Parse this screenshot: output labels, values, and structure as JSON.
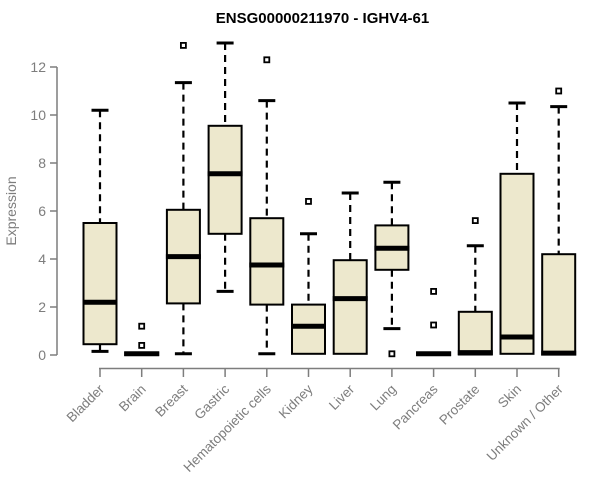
{
  "chart_data": {
    "type": "boxplot",
    "title": "ENSG00000211970 - IGHV4-61",
    "ylabel": "Expression",
    "xlabel": "",
    "yticks": [
      0,
      2,
      4,
      6,
      8,
      10,
      12
    ],
    "ylim": [
      0,
      13.2
    ],
    "grid": false,
    "legend": false,
    "categories": [
      "Bladder",
      "Brain",
      "Breast",
      "Gastric",
      "Hematopoietic cells",
      "Kidney",
      "Liver",
      "Lung",
      "Pancreas",
      "Prostate",
      "Skin",
      "Unknown / Other"
    ],
    "series": [
      {
        "category": "Bladder",
        "whisker_low": 0.15,
        "q1": 0.45,
        "median": 2.2,
        "q3": 5.5,
        "whisker_high": 10.2,
        "outliers": []
      },
      {
        "category": "Brain",
        "whisker_low": 0,
        "q1": 0,
        "median": 0.05,
        "q3": 0.1,
        "whisker_high": 0.1,
        "outliers": [
          0.4,
          1.2
        ]
      },
      {
        "category": "Breast",
        "whisker_low": 0.05,
        "q1": 2.15,
        "median": 4.1,
        "q3": 6.05,
        "whisker_high": 11.35,
        "outliers": [
          12.9
        ]
      },
      {
        "category": "Gastric",
        "whisker_low": 2.65,
        "q1": 5.05,
        "median": 7.55,
        "q3": 9.55,
        "whisker_high": 13.0,
        "outliers": []
      },
      {
        "category": "Hematopoietic cells",
        "whisker_low": 0.05,
        "q1": 2.1,
        "median": 3.75,
        "q3": 5.7,
        "whisker_high": 10.6,
        "outliers": [
          12.3
        ]
      },
      {
        "category": "Kidney",
        "whisker_low": 0.05,
        "q1": 0.05,
        "median": 1.2,
        "q3": 2.1,
        "whisker_high": 5.05,
        "outliers": [
          6.4
        ]
      },
      {
        "category": "Liver",
        "whisker_low": 0.05,
        "q1": 0.05,
        "median": 2.35,
        "q3": 3.95,
        "whisker_high": 6.75,
        "outliers": []
      },
      {
        "category": "Lung",
        "whisker_low": 1.1,
        "q1": 3.55,
        "median": 4.45,
        "q3": 5.4,
        "whisker_high": 7.2,
        "outliers": [
          0.05
        ]
      },
      {
        "category": "Pancreas",
        "whisker_low": 0,
        "q1": 0,
        "median": 0.05,
        "q3": 0.1,
        "whisker_high": 0.1,
        "outliers": [
          1.25,
          2.65
        ]
      },
      {
        "category": "Prostate",
        "whisker_low": 0.02,
        "q1": 0.02,
        "median": 0.1,
        "q3": 1.8,
        "whisker_high": 4.55,
        "outliers": [
          5.6
        ]
      },
      {
        "category": "Skin",
        "whisker_low": 0.05,
        "q1": 0.05,
        "median": 0.75,
        "q3": 7.55,
        "whisker_high": 10.5,
        "outliers": []
      },
      {
        "category": "Unknown / Other",
        "whisker_low": 0.02,
        "q1": 0.02,
        "median": 0.08,
        "q3": 4.2,
        "whisker_high": 10.35,
        "outliers": [
          11.0
        ]
      }
    ],
    "colors": {
      "box_fill": "#EDE8CD",
      "box_border": "#000000",
      "median": "#000000",
      "whisker": "#000000",
      "outlier_fill": "#ffffff",
      "axis": "#7D7D7D",
      "title": "#000000",
      "background": "#ffffff"
    }
  }
}
